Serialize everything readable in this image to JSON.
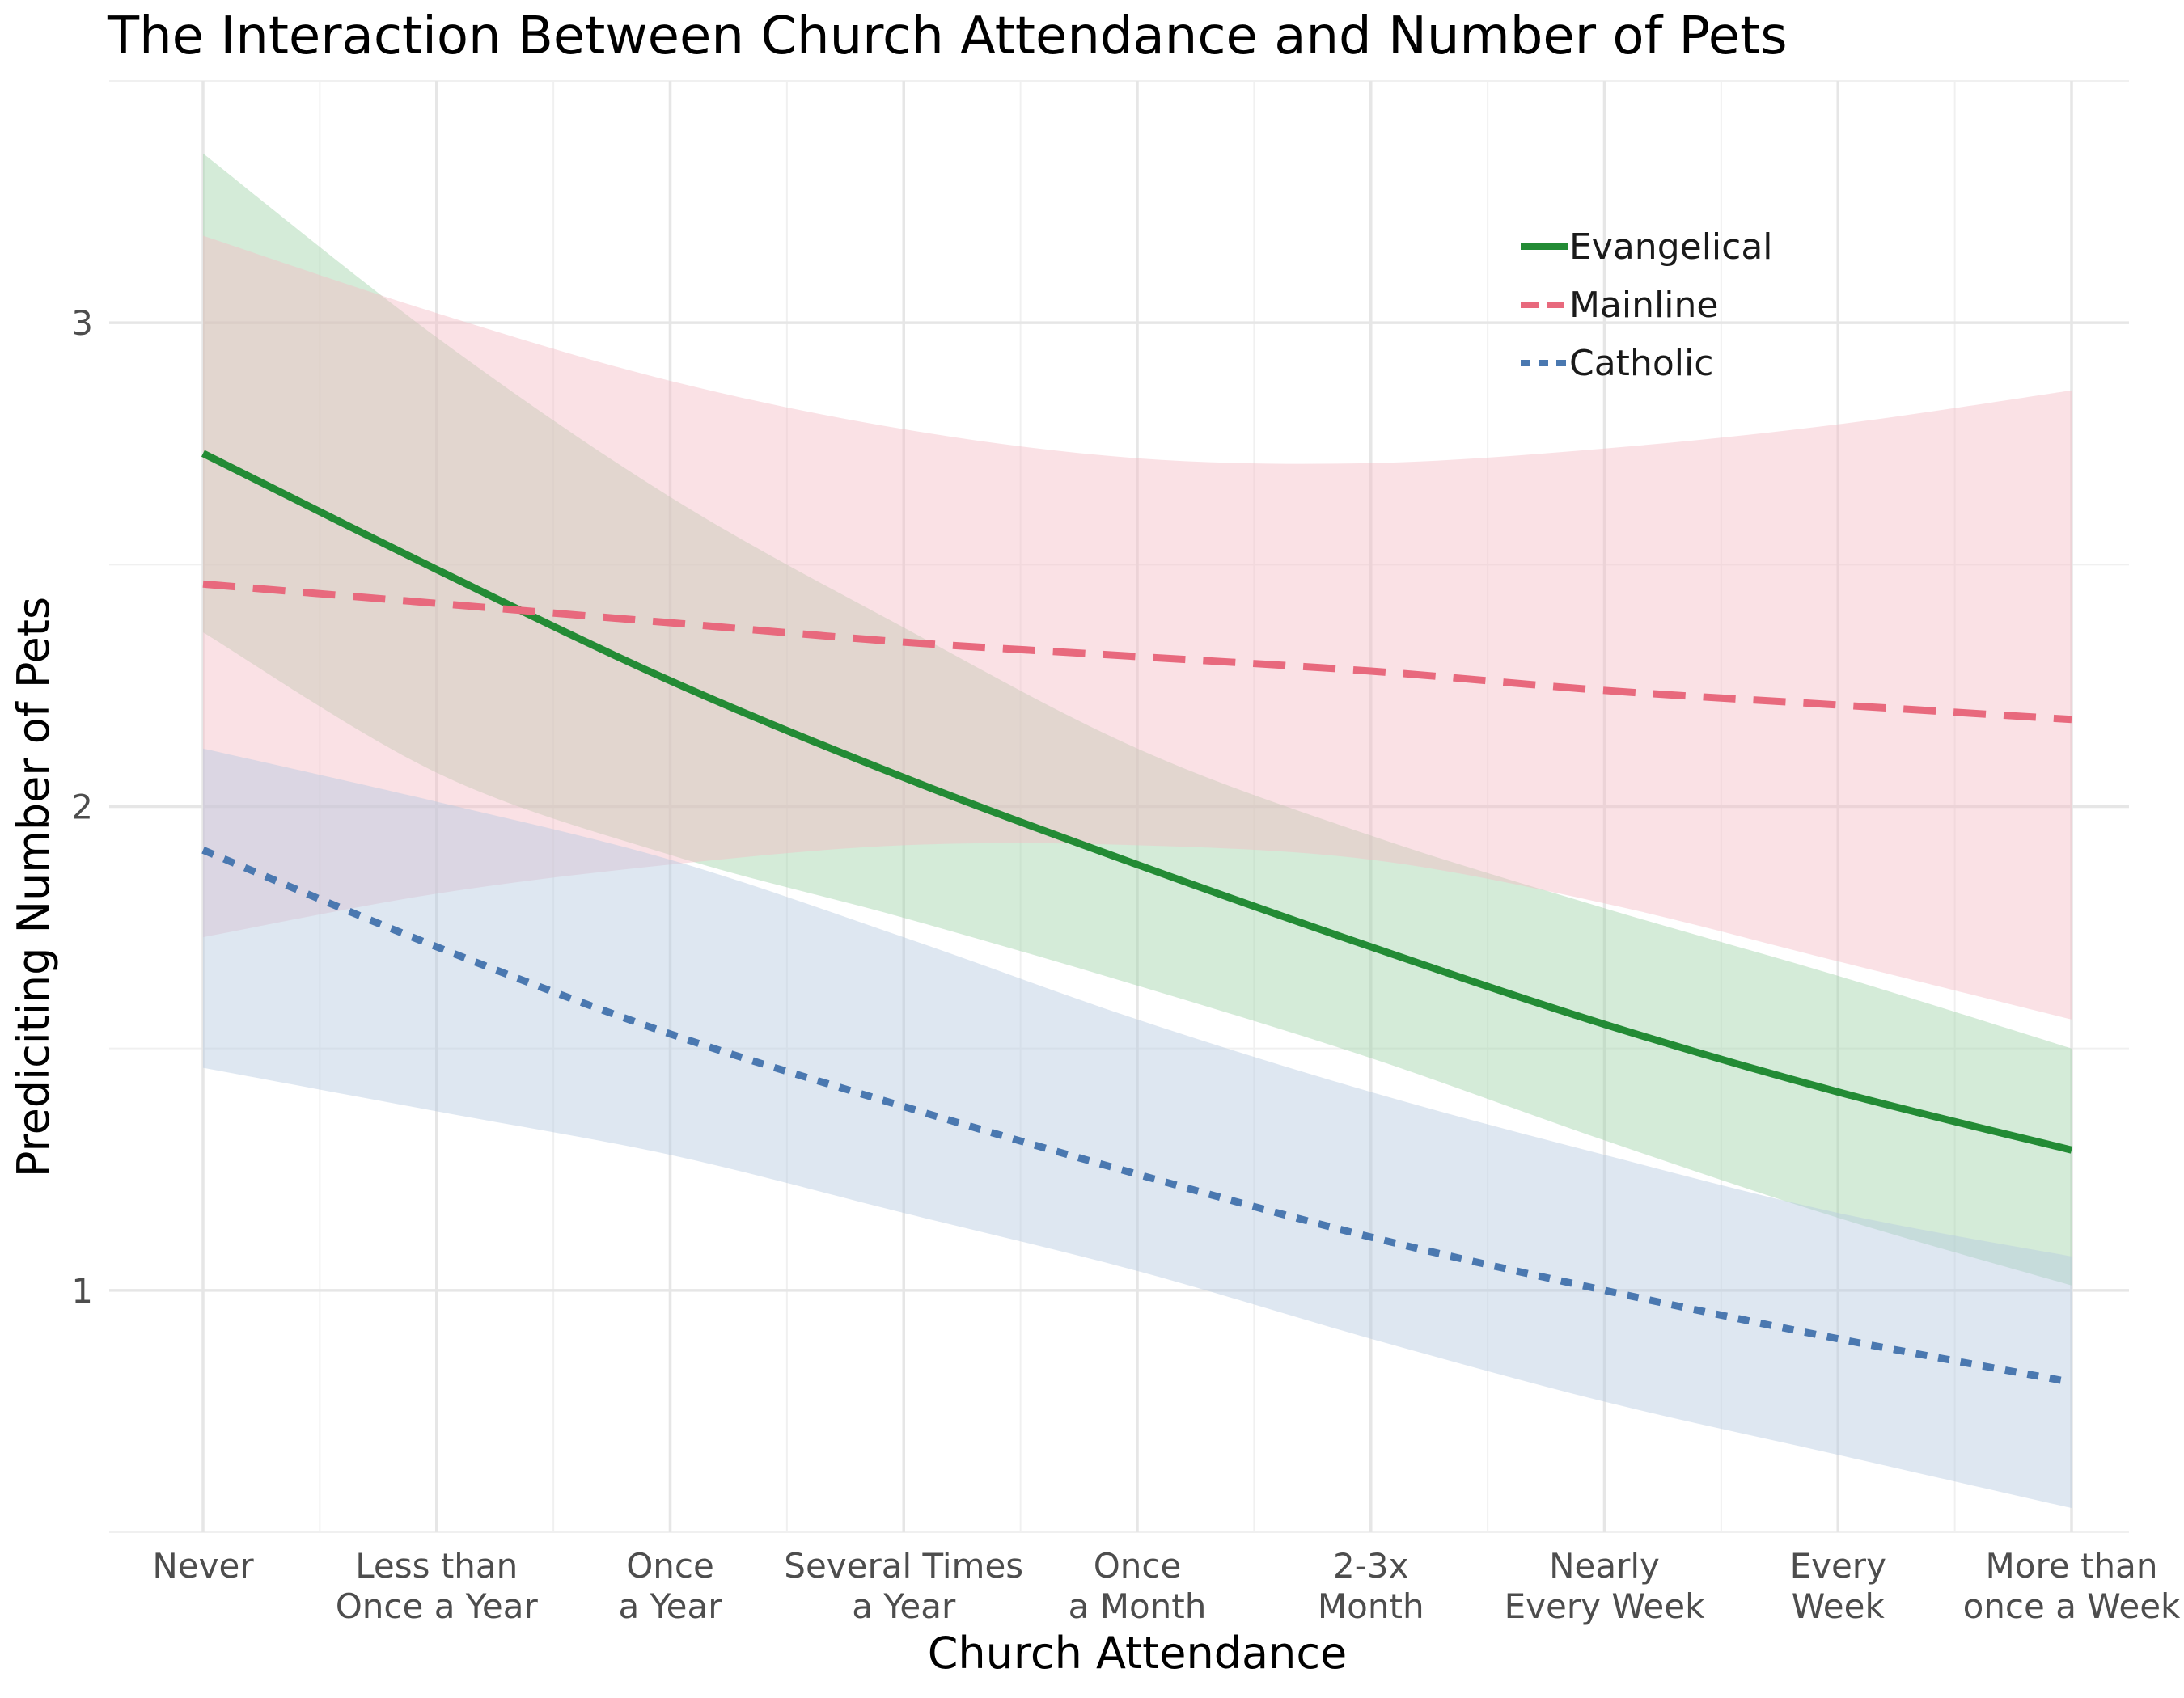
{
  "chart_data": {
    "type": "line",
    "title": "The Interaction Between Church Attendance and Number of Pets",
    "xlabel": "Church Attendance",
    "ylabel": "Prediciting Number of Pets",
    "categories": [
      [
        "Never"
      ],
      [
        "Less than",
        "Once a Year"
      ],
      [
        "Once",
        "a Year"
      ],
      [
        "Several Times",
        "a Year"
      ],
      [
        "Once",
        "a Month"
      ],
      [
        "2-3x",
        "Month"
      ],
      [
        "Nearly",
        "Every Week"
      ],
      [
        "Every",
        "Week"
      ],
      [
        "More than",
        "once a Week"
      ]
    ],
    "ylim": [
      0.5,
      3.5
    ],
    "yticks": [
      1,
      2,
      3
    ],
    "grid": true,
    "legend_position": "top-right",
    "series": [
      {
        "name": "Evangelical",
        "color": "#238b35",
        "dash": "solid",
        "band_color": "#9fd3a9",
        "values": [
          2.73,
          2.49,
          2.26,
          2.06,
          1.88,
          1.71,
          1.55,
          1.41,
          1.29
        ],
        "lower": [
          2.36,
          2.07,
          1.9,
          1.77,
          1.63,
          1.48,
          1.31,
          1.15,
          1.01
        ],
        "upper": [
          3.35,
          2.97,
          2.64,
          2.37,
          2.12,
          1.94,
          1.79,
          1.65,
          1.5
        ]
      },
      {
        "name": "Mainline",
        "color": "#e8697d",
        "dash": "dashed",
        "band_color": "#f4bcc5",
        "values": [
          2.46,
          2.42,
          2.38,
          2.34,
          2.31,
          2.28,
          2.24,
          2.21,
          2.18
        ],
        "lower": [
          1.73,
          1.82,
          1.88,
          1.92,
          1.92,
          1.89,
          1.8,
          1.68,
          1.56
        ],
        "upper": [
          3.18,
          3.02,
          2.88,
          2.78,
          2.72,
          2.71,
          2.74,
          2.79,
          2.86
        ]
      },
      {
        "name": "Catholic",
        "color": "#4a78b0",
        "dash": "dotted",
        "band_color": "#b6c9e1",
        "values": [
          1.91,
          1.71,
          1.53,
          1.38,
          1.24,
          1.11,
          1.0,
          0.9,
          0.81
        ],
        "lower": [
          1.46,
          1.37,
          1.28,
          1.16,
          1.04,
          0.9,
          0.77,
          0.66,
          0.55
        ],
        "upper": [
          2.12,
          2.01,
          1.89,
          1.73,
          1.56,
          1.41,
          1.28,
          1.16,
          1.07
        ]
      }
    ]
  }
}
